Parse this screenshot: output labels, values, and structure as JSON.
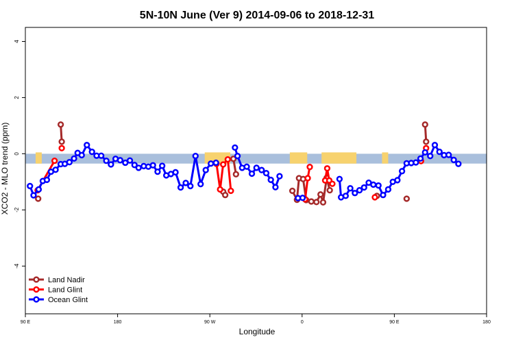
{
  "chart_data": {
    "type": "line",
    "title": "5N-10N June (Ver 9)   2014-09-06 to 2018-12-31",
    "xlabel": "Longitude",
    "ylabel": "XCO2 - MLO trend (ppm)",
    "x_ticks": [
      {
        "value": 90,
        "label": "90 E"
      },
      {
        "value": 180,
        "label": "180"
      },
      {
        "value": 270,
        "label": "90 W"
      },
      {
        "value": 360,
        "label": "0"
      },
      {
        "value": 450,
        "label": "90 E"
      },
      {
        "value": 540,
        "label": "180"
      }
    ],
    "xlim": [
      90,
      540
    ],
    "y_ticks": [
      -4,
      -2,
      0,
      2,
      4
    ],
    "ylim": [
      -5.7,
      4.5
    ],
    "land_band": {
      "ymin": -0.35,
      "ymax": 0,
      "ocean_color": "#a9bfdc",
      "land_color": "#f7d26e"
    },
    "land_ranges": [
      [
        100,
        106
      ],
      [
        265,
        290
      ],
      [
        348,
        365
      ],
      [
        379,
        413
      ],
      [
        438,
        444
      ]
    ],
    "series": [
      {
        "name": "Land Nadir",
        "color": "#a52a2a",
        "segments": [
          [
            [
              102.5,
              -1.6
            ]
          ],
          [
            [
              124.5,
              1.04
            ],
            [
              125.5,
              0.43
            ]
          ],
          [
            [
              283,
              -1.35
            ],
            [
              285,
              -1.47
            ]
          ],
          [
            [
              293,
              -0.18
            ],
            [
              295.5,
              -0.73
            ]
          ],
          [
            [
              350.5,
              -1.32
            ],
            [
              355,
              -1.64
            ],
            [
              357,
              -0.87
            ],
            [
              361,
              -0.9
            ],
            [
              364,
              -1.65
            ],
            [
              369,
              -1.7
            ],
            [
              374,
              -1.72
            ],
            [
              378,
              -1.45
            ],
            [
              380.5,
              -1.73
            ],
            [
              384,
              -0.86
            ],
            [
              387,
              -1.3
            ]
          ],
          [
            [
              433,
              -1.5
            ]
          ],
          [
            [
              462,
              -1.6
            ]
          ],
          [
            [
              480,
              1.04
            ],
            [
              481,
              0.43
            ]
          ]
        ]
      },
      {
        "name": "Land Glint",
        "color": "#ff0000",
        "segments": [
          [
            [
              102,
              -1.3
            ],
            [
              118.5,
              -0.25
            ]
          ],
          [
            [
              125.5,
              0.2
            ]
          ],
          [
            [
              276.5,
              -0.36
            ],
            [
              280,
              -1.27
            ],
            [
              283,
              -0.38
            ],
            [
              287.5,
              -0.2
            ],
            [
              290.5,
              -1.32
            ]
          ],
          [
            [
              363,
              -1.62
            ],
            [
              365.5,
              -0.87
            ],
            [
              367.5,
              -0.47
            ]
          ],
          [
            [
              382.5,
              -0.95
            ],
            [
              384.5,
              -0.52
            ],
            [
              386.5,
              -0.95
            ],
            [
              389.5,
              -1.07
            ]
          ],
          [
            [
              431,
              -1.55
            ]
          ],
          [
            [
              476,
              -0.26
            ]
          ],
          [
            [
              481,
              0.2
            ]
          ]
        ]
      },
      {
        "name": "Ocean Glint",
        "color": "#0000ff",
        "segments": [
          [
            [
              94.5,
              -1.15
            ],
            [
              98,
              -1.48
            ],
            [
              103,
              -1.27
            ],
            [
              107,
              -0.97
            ],
            [
              111,
              -0.93
            ],
            [
              115,
              -0.64
            ],
            [
              119.5,
              -0.57
            ],
            [
              124.5,
              -0.37
            ],
            [
              128.5,
              -0.36
            ],
            [
              133,
              -0.3
            ],
            [
              137.5,
              -0.17
            ],
            [
              141,
              0.03
            ],
            [
              145,
              -0.05
            ],
            [
              150,
              0.31
            ],
            [
              155,
              0.07
            ],
            [
              159.5,
              -0.07
            ],
            [
              164,
              -0.07
            ],
            [
              169,
              -0.25
            ],
            [
              173.5,
              -0.38
            ],
            [
              178,
              -0.18
            ],
            [
              182.5,
              -0.23
            ],
            [
              187.5,
              -0.32
            ],
            [
              192,
              -0.24
            ],
            [
              196.5,
              -0.4
            ],
            [
              200.5,
              -0.5
            ],
            [
              205.5,
              -0.44
            ],
            [
              210,
              -0.46
            ],
            [
              214.5,
              -0.41
            ],
            [
              219,
              -0.64
            ],
            [
              223.5,
              -0.43
            ],
            [
              227.5,
              -0.77
            ],
            [
              232,
              -0.72
            ],
            [
              236.5,
              -0.66
            ],
            [
              241.5,
              -1.2
            ],
            [
              246.5,
              -1.04
            ],
            [
              251,
              -1.15
            ],
            [
              256,
              -0.08
            ],
            [
              261,
              -1.08
            ],
            [
              266,
              -0.58
            ],
            [
              271,
              -0.35
            ],
            [
              276,
              -0.32
            ]
          ],
          [
            [
              294.5,
              0.22
            ],
            [
              297,
              -0.08
            ],
            [
              301.5,
              -0.5
            ],
            [
              306,
              -0.46
            ],
            [
              311,
              -0.71
            ],
            [
              315.5,
              -0.5
            ],
            [
              320.5,
              -0.58
            ],
            [
              325,
              -0.69
            ],
            [
              329.5,
              -0.93
            ],
            [
              334,
              -1.19
            ],
            [
              338,
              -0.8
            ]
          ],
          [
            [
              356,
              -1.58
            ],
            [
              360.5,
              -1.57
            ]
          ],
          [
            [
              396.5,
              -0.9
            ],
            [
              398,
              -1.55
            ],
            [
              402.5,
              -1.5
            ],
            [
              407,
              -1.23
            ],
            [
              411.5,
              -1.4
            ],
            [
              416,
              -1.3
            ],
            [
              420.5,
              -1.2
            ],
            [
              425,
              -1.03
            ],
            [
              429.5,
              -1.1
            ],
            [
              434.5,
              -1.13
            ],
            [
              439,
              -1.47
            ],
            [
              444,
              -1.27
            ],
            [
              448.5,
              -1.0
            ],
            [
              453,
              -0.94
            ],
            [
              457.5,
              -0.62
            ],
            [
              462,
              -0.34
            ],
            [
              466.5,
              -0.33
            ],
            [
              471,
              -0.31
            ],
            [
              475.5,
              -0.17
            ],
            [
              480,
              0.05
            ],
            [
              485,
              -0.08
            ],
            [
              489.5,
              0.31
            ],
            [
              494,
              0.07
            ],
            [
              498.5,
              -0.05
            ],
            [
              503,
              -0.04
            ],
            [
              508,
              -0.22
            ],
            [
              512.5,
              -0.36
            ]
          ]
        ]
      }
    ],
    "legend": {
      "placement": "bottom-left",
      "entries": [
        "Land Nadir",
        "Land Glint",
        "Ocean Glint"
      ]
    }
  }
}
